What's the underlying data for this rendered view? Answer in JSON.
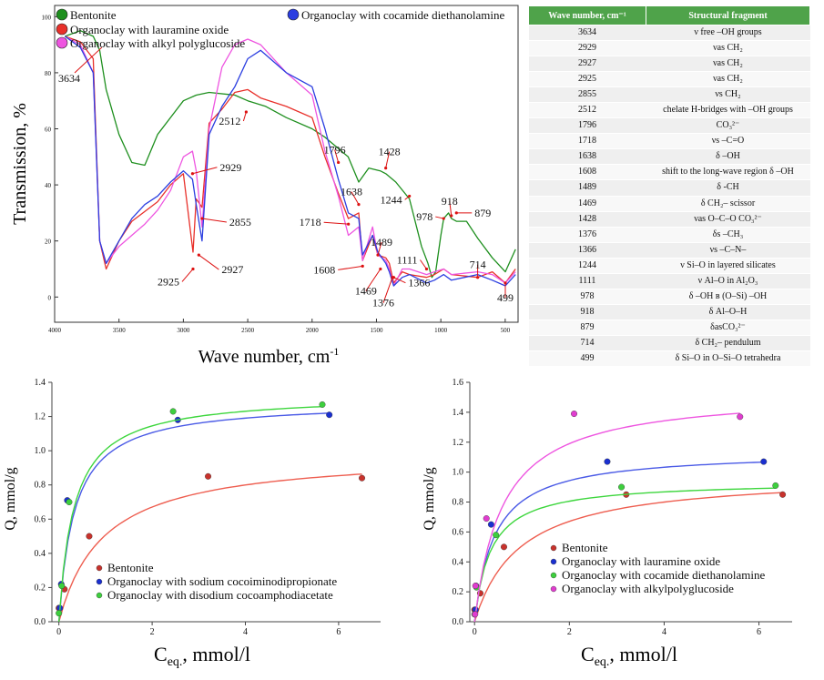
{
  "chart_data": [
    {
      "type": "line",
      "title": "",
      "xlabel": "Wave number, cm",
      "xlabel_sup": "-1",
      "ylabel": "Transmission, %",
      "xlim": [
        4000,
        400
      ],
      "ylim": [
        -9,
        104
      ],
      "x_ticks": [
        "4000",
        "3500",
        "3000",
        "2500",
        "2000",
        "1500",
        "1000",
        "500"
      ],
      "y_ticks": [
        "0",
        "20",
        "40",
        "60",
        "80",
        "100"
      ],
      "colors": {
        "Bentonite": "#1e8f1e",
        "lauramine": "#e8302a",
        "alkyl": "#ee55e0",
        "cocamide": "#2b3ee0"
      },
      "legend": {
        "items": [
          {
            "label": "Bentonite",
            "color": "#1e8f1e"
          },
          {
            "label": "Organoclay with lauramine oxide",
            "color": "#e8302a"
          },
          {
            "label": "Organoclay with alkyl polyglucoside",
            "color": "#ee55e0"
          },
          {
            "label": "Organoclay with cocamide diethanolamine",
            "color": "#2b3ee0"
          }
        ]
      },
      "series": [
        {
          "name": "Bentonite",
          "color": "#1e8f1e",
          "points": [
            [
              3920,
              93
            ],
            [
              3800,
              95
            ],
            [
              3700,
              93
            ],
            [
              3650,
              88
            ],
            [
              3600,
              74
            ],
            [
              3500,
              58
            ],
            [
              3400,
              48
            ],
            [
              3300,
              47
            ],
            [
              3200,
              58
            ],
            [
              3000,
              70
            ],
            [
              2900,
              72
            ],
            [
              2800,
              73
            ],
            [
              2600,
              72
            ],
            [
              2500,
              70
            ],
            [
              2360,
              68
            ],
            [
              2200,
              64
            ],
            [
              2000,
              60
            ],
            [
              1900,
              57
            ],
            [
              1796,
              53
            ],
            [
              1720,
              50
            ],
            [
              1638,
              41
            ],
            [
              1560,
              46
            ],
            [
              1470,
              45
            ],
            [
              1428,
              44
            ],
            [
              1350,
              41
            ],
            [
              1244,
              35
            ],
            [
              1150,
              18
            ],
            [
              1100,
              12
            ],
            [
              1070,
              7
            ],
            [
              1040,
              9
            ],
            [
              1000,
              22
            ],
            [
              978,
              28
            ],
            [
              940,
              30
            ],
            [
              918,
              28
            ],
            [
              879,
              27
            ],
            [
              800,
              27
            ],
            [
              714,
              21
            ],
            [
              600,
              14
            ],
            [
              499,
              9
            ],
            [
              420,
              17
            ]
          ]
        },
        {
          "name": "Organoclay with lauramine oxide",
          "color": "#e8302a",
          "points": [
            [
              3920,
              93
            ],
            [
              3800,
              91
            ],
            [
              3700,
              85
            ],
            [
              3650,
              20
            ],
            [
              3600,
              10
            ],
            [
              3500,
              20
            ],
            [
              3400,
              27
            ],
            [
              3200,
              34
            ],
            [
              3100,
              40
            ],
            [
              3000,
              44
            ],
            [
              2925,
              16
            ],
            [
              2900,
              35
            ],
            [
              2855,
              32
            ],
            [
              2800,
              62
            ],
            [
              2700,
              67
            ],
            [
              2600,
              73
            ],
            [
              2500,
              74
            ],
            [
              2400,
              71
            ],
            [
              2200,
              68
            ],
            [
              2000,
              64
            ],
            [
              1900,
              50
            ],
            [
              1796,
              37
            ],
            [
              1718,
              28
            ],
            [
              1638,
              30
            ],
            [
              1608,
              13
            ],
            [
              1530,
              22
            ],
            [
              1489,
              15
            ],
            [
              1428,
              14
            ],
            [
              1400,
              12
            ],
            [
              1366,
              5
            ],
            [
              1300,
              9
            ],
            [
              1244,
              8
            ],
            [
              1111,
              7
            ],
            [
              1050,
              8
            ],
            [
              978,
              10
            ],
            [
              918,
              8
            ],
            [
              714,
              7
            ],
            [
              600,
              9
            ],
            [
              499,
              5
            ],
            [
              420,
              10
            ]
          ]
        },
        {
          "name": "Organoclay with alkyl polyglucoside",
          "color": "#ee55e0",
          "points": [
            [
              3920,
              93
            ],
            [
              3800,
              90
            ],
            [
              3700,
              80
            ],
            [
              3650,
              20
            ],
            [
              3600,
              12
            ],
            [
              3500,
              18
            ],
            [
              3400,
              22
            ],
            [
              3300,
              26
            ],
            [
              3200,
              31
            ],
            [
              3100,
              38
            ],
            [
              3000,
              50
            ],
            [
              2929,
              52
            ],
            [
              2900,
              45
            ],
            [
              2855,
              25
            ],
            [
              2800,
              60
            ],
            [
              2700,
              82
            ],
            [
              2600,
              90
            ],
            [
              2500,
              92
            ],
            [
              2400,
              90
            ],
            [
              2200,
              80
            ],
            [
              2000,
              72
            ],
            [
              1900,
              52
            ],
            [
              1796,
              36
            ],
            [
              1718,
              22
            ],
            [
              1638,
              25
            ],
            [
              1608,
              13
            ],
            [
              1530,
              25
            ],
            [
              1489,
              15
            ],
            [
              1428,
              13
            ],
            [
              1400,
              10
            ],
            [
              1366,
              4
            ],
            [
              1300,
              10
            ],
            [
              1244,
              10
            ],
            [
              1111,
              8
            ],
            [
              1050,
              9
            ],
            [
              978,
              10
            ],
            [
              918,
              8
            ],
            [
              714,
              9
            ],
            [
              600,
              8
            ],
            [
              499,
              5
            ],
            [
              420,
              9
            ]
          ]
        },
        {
          "name": "Organoclay with cocamide diethanolamine",
          "color": "#2b3ee0",
          "points": [
            [
              3920,
              93
            ],
            [
              3800,
              89
            ],
            [
              3700,
              80
            ],
            [
              3650,
              20
            ],
            [
              3600,
              12
            ],
            [
              3500,
              20
            ],
            [
              3400,
              28
            ],
            [
              3300,
              33
            ],
            [
              3200,
              36
            ],
            [
              3100,
              41
            ],
            [
              3000,
              45
            ],
            [
              2929,
              42
            ],
            [
              2900,
              33
            ],
            [
              2855,
              20
            ],
            [
              2800,
              58
            ],
            [
              2700,
              68
            ],
            [
              2600,
              75
            ],
            [
              2500,
              85
            ],
            [
              2400,
              88
            ],
            [
              2300,
              84
            ],
            [
              2200,
              80
            ],
            [
              2000,
              75
            ],
            [
              1900,
              60
            ],
            [
              1796,
              42
            ],
            [
              1718,
              30
            ],
            [
              1638,
              28
            ],
            [
              1608,
              15
            ],
            [
              1530,
              22
            ],
            [
              1489,
              16
            ],
            [
              1428,
              12
            ],
            [
              1400,
              9
            ],
            [
              1366,
              4
            ],
            [
              1300,
              7
            ],
            [
              1244,
              8
            ],
            [
              1111,
              5
            ],
            [
              1050,
              6
            ],
            [
              978,
              8
            ],
            [
              918,
              6
            ],
            [
              714,
              8
            ],
            [
              600,
              6
            ],
            [
              499,
              4
            ],
            [
              420,
              8
            ]
          ]
        }
      ],
      "annotations": [
        {
          "text": "3634",
          "x": 3634,
          "y": 89
        },
        {
          "text": "2929",
          "x": 2929,
          "y": 44
        },
        {
          "text": "2855",
          "x": 2855,
          "y": 28
        },
        {
          "text": "2925",
          "x": 2925,
          "y": 10
        },
        {
          "text": "2927",
          "x": 2880,
          "y": 15
        },
        {
          "text": "2512",
          "x": 2512,
          "y": 66
        },
        {
          "text": "1796",
          "x": 1796,
          "y": 48
        },
        {
          "text": "1428",
          "x": 1428,
          "y": 46
        },
        {
          "text": "1638",
          "x": 1638,
          "y": 33
        },
        {
          "text": "1244",
          "x": 1244,
          "y": 36
        },
        {
          "text": "1718",
          "x": 1718,
          "y": 26
        },
        {
          "text": "978",
          "x": 978,
          "y": 28
        },
        {
          "text": "918",
          "x": 918,
          "y": 29
        },
        {
          "text": "879",
          "x": 879,
          "y": 30
        },
        {
          "text": "1489",
          "x": 1489,
          "y": 15
        },
        {
          "text": "1608",
          "x": 1608,
          "y": 11
        },
        {
          "text": "1111",
          "x": 1111,
          "y": 10
        },
        {
          "text": "714",
          "x": 714,
          "y": 7
        },
        {
          "text": "1469",
          "x": 1469,
          "y": 10
        },
        {
          "text": "1366",
          "x": 1366,
          "y": 7
        },
        {
          "text": "1376",
          "x": 1376,
          "y": 7
        },
        {
          "text": "499",
          "x": 499,
          "y": 5
        }
      ]
    },
    {
      "type": "scatter",
      "title": "",
      "xlabel": "C",
      "xlabel_sub": "eq.",
      "xlabel_rest": ", mmol/l",
      "ylabel": "Q, mmol/g",
      "xlim": [
        -0.15,
        6.9
      ],
      "ylim": [
        0,
        1.4
      ],
      "x_ticks": [
        "0",
        "2",
        "4",
        "6"
      ],
      "y_ticks": [
        "0.0",
        "0.2",
        "0.4",
        "0.6",
        "0.8",
        "1.0",
        "1.2",
        "1.4"
      ],
      "series": [
        {
          "name": "Bentonite",
          "color": "#c8322c",
          "line": "#ee5e50",
          "x": [
            0.0,
            0.12,
            0.65,
            3.2,
            6.5
          ],
          "y": [
            0.08,
            0.19,
            0.5,
            0.85,
            0.84
          ],
          "qmax": 0.99,
          "k": 1.05
        },
        {
          "name": "Organoclay with sodium cocoiminodipropionate",
          "color": "#1a2fd0",
          "line": "#4a5ae6",
          "x": [
            0.02,
            0.05,
            0.18,
            2.55,
            5.8
          ],
          "y": [
            0.08,
            0.22,
            0.71,
            1.18,
            1.21
          ],
          "qmax": 1.29,
          "k": 3.0
        },
        {
          "name": "Organoclay with disodium cocoamphodiacetate",
          "color": "#3dcf3d",
          "line": "#3dd63d",
          "x": [
            0.0,
            0.06,
            0.22,
            2.45,
            5.65
          ],
          "y": [
            0.05,
            0.21,
            0.7,
            1.23,
            1.27
          ],
          "qmax": 1.33,
          "k": 3.1
        }
      ]
    },
    {
      "type": "scatter",
      "title": "",
      "xlabel": "C",
      "xlabel_sub": "eq.",
      "xlabel_rest": ", mmol/l",
      "ylabel": "Q, mmol/g",
      "xlim": [
        -0.1,
        6.7
      ],
      "ylim": [
        0,
        1.6
      ],
      "x_ticks": [
        "0",
        "2",
        "4",
        "6"
      ],
      "y_ticks": [
        "0.0",
        "0.2",
        "0.4",
        "0.6",
        "0.8",
        "1.0",
        "1.2",
        "1.4",
        "1.6"
      ],
      "series": [
        {
          "name": "Bentonite",
          "color": "#c8322c",
          "line": "#ee5e50",
          "x": [
            0.0,
            0.12,
            0.62,
            3.2,
            6.5
          ],
          "y": [
            0.08,
            0.19,
            0.5,
            0.85,
            0.85
          ],
          "qmax": 0.99,
          "k": 1.05
        },
        {
          "name": "Organoclay with lauramine oxide",
          "color": "#1a2fd0",
          "line": "#4a5ae6",
          "x": [
            0.02,
            0.03,
            0.35,
            2.8,
            6.1
          ],
          "y": [
            0.08,
            0.24,
            0.65,
            1.07,
            1.07
          ],
          "qmax": 1.14,
          "k": 2.4
        },
        {
          "name": "Organoclay with cocamide diethanolamine",
          "color": "#3dcf3d",
          "line": "#3dd63d",
          "x": [
            0.0,
            0.04,
            0.45,
            3.1,
            6.35
          ],
          "y": [
            0.05,
            0.23,
            0.58,
            0.9,
            0.91
          ],
          "qmax": 0.94,
          "k": 3.0
        },
        {
          "name": "Organoclay with alkylpolyglucoside",
          "color": "#e03ccf",
          "line": "#ee55e0",
          "x": [
            0.01,
            0.02,
            0.25,
            2.1,
            5.6
          ],
          "y": [
            0.05,
            0.24,
            0.69,
            1.39,
            1.37
          ],
          "qmax": 1.54,
          "k": 1.7
        }
      ]
    }
  ],
  "table": {
    "headers": [
      "Wave number, cm⁻¹",
      "Structural fragment"
    ],
    "rows": [
      [
        "3634",
        "ν free –OH groups"
      ],
      [
        "2929",
        "νas CH₂"
      ],
      [
        "2927",
        "νas CH₂"
      ],
      [
        "2925",
        "νas CH₂"
      ],
      [
        "2855",
        "νs CH₂"
      ],
      [
        "2512",
        "chelate H-bridges with –OH groups"
      ],
      [
        "1796",
        "CO₃²⁻"
      ],
      [
        "1718",
        "νs –C=O"
      ],
      [
        "1638",
        "δ –OH"
      ],
      [
        "1608",
        "shift to the long-wave region δ –OH"
      ],
      [
        "1489",
        "δ -CH"
      ],
      [
        "1469",
        "δ CH₂– scissor"
      ],
      [
        "1428",
        "νas O–C–O CO₃²⁻"
      ],
      [
        "1376",
        "δs –CH₃"
      ],
      [
        "1366",
        "νs –C–N–"
      ],
      [
        "1244",
        "ν Si–O in layered silicates"
      ],
      [
        "1111",
        "ν Al–O in Al₂O₃"
      ],
      [
        "978",
        "δ –OH в (O–Si) –OH"
      ],
      [
        "918",
        "δ Al–O–H"
      ],
      [
        "879",
        "δasCO₃²⁻"
      ],
      [
        "714",
        "δ CH₂– pendulum"
      ],
      [
        "499",
        "δ Si–O in O–Si–O tetrahedra"
      ]
    ]
  }
}
